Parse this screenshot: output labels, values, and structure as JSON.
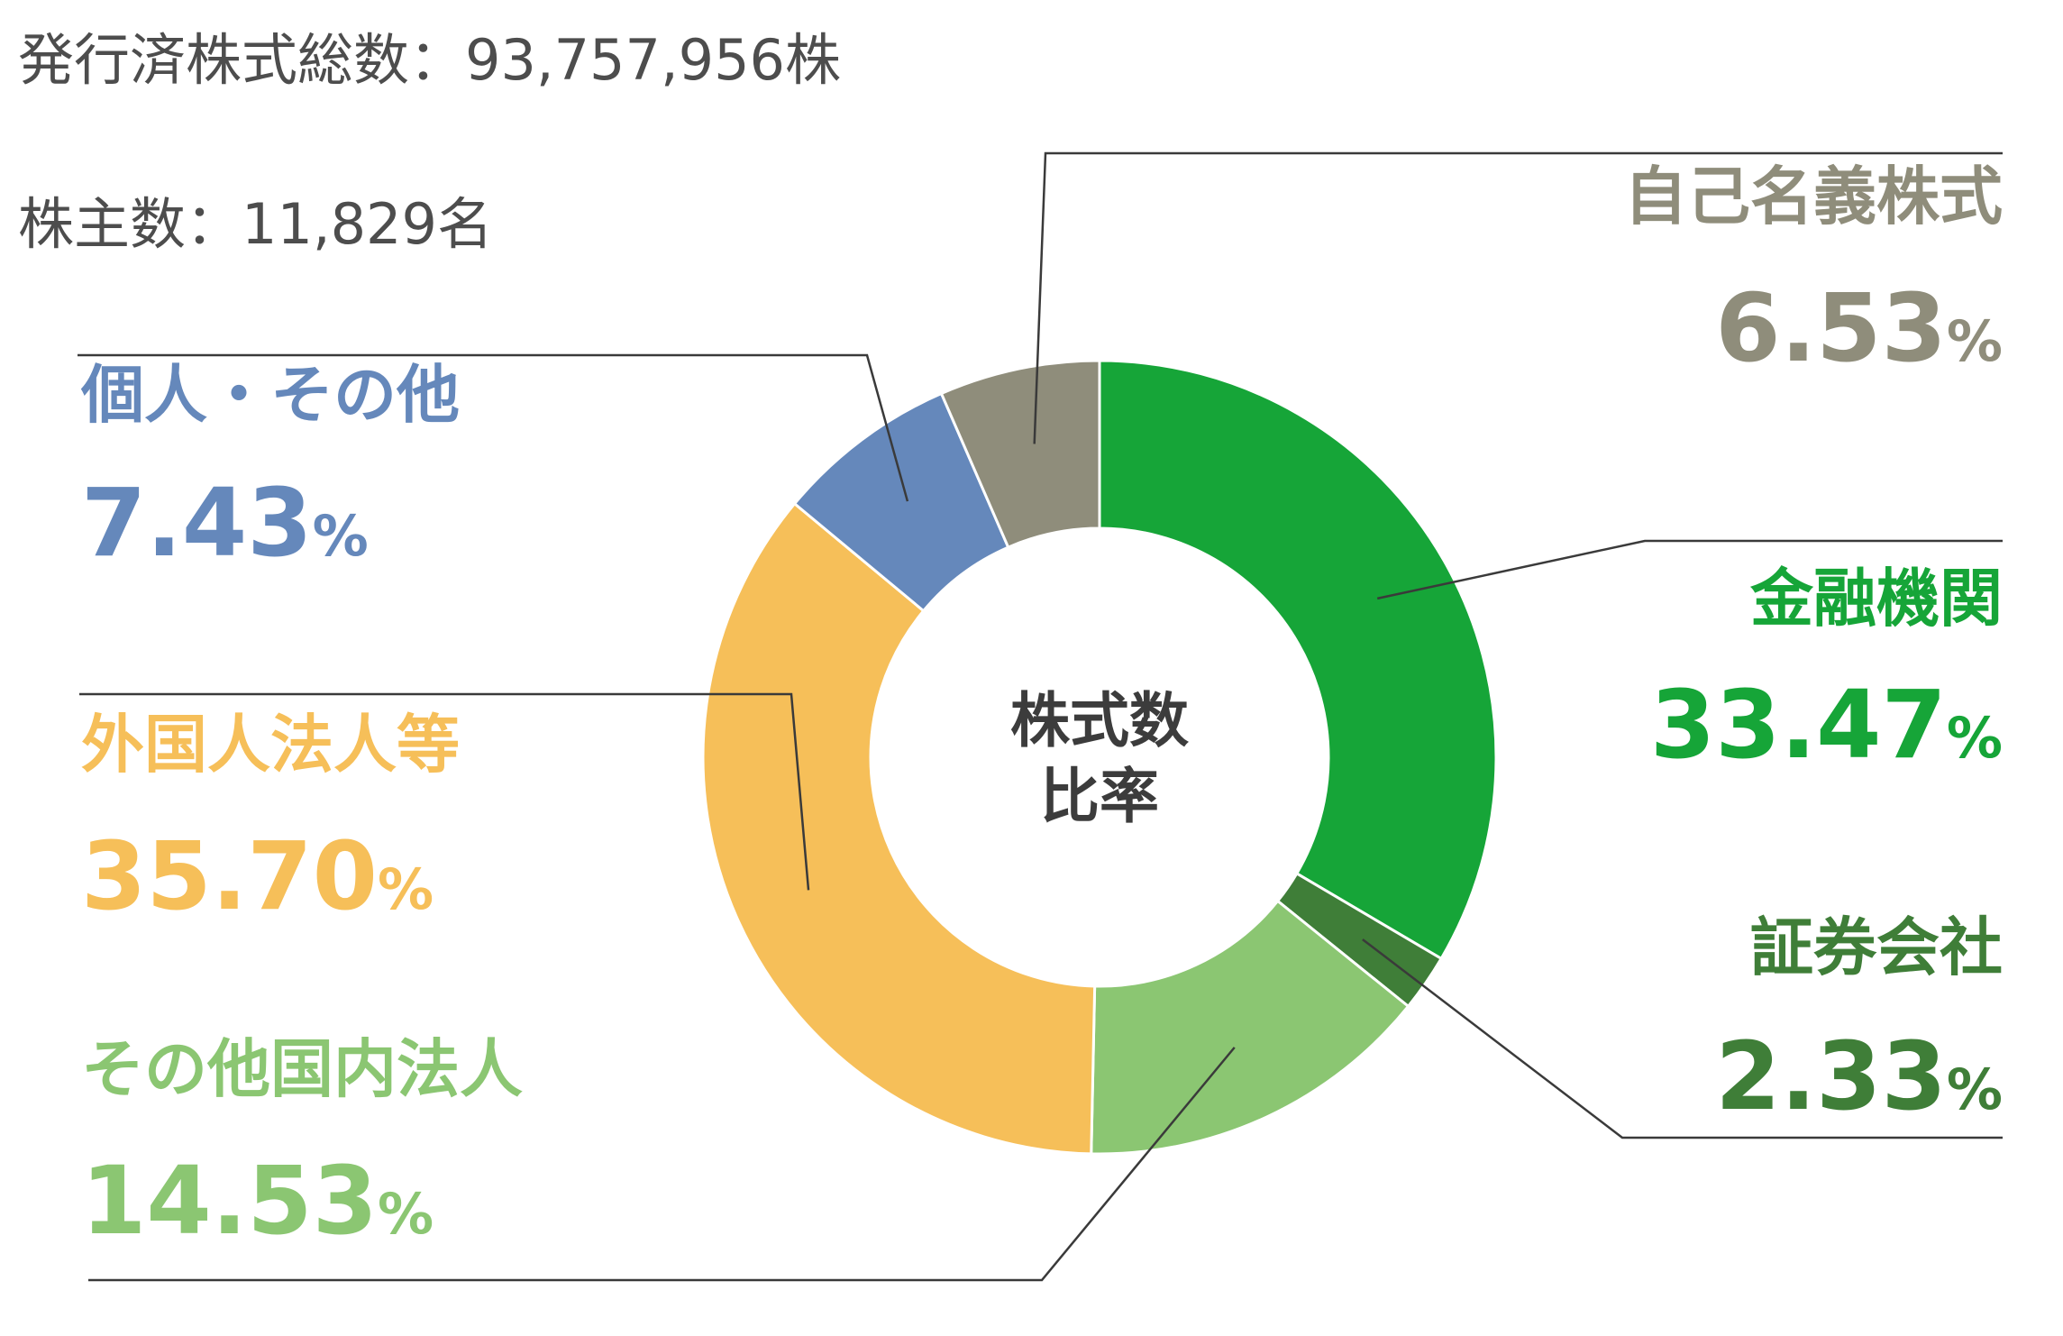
{
  "info": {
    "issued_shares": "発行済株式総数：93,757,956株",
    "shareholders": "株主数：11,829名"
  },
  "chart_data": {
    "type": "pie",
    "center_label": [
      "株式数",
      "比率"
    ],
    "unit": "%",
    "series": [
      {
        "name": "金融機関",
        "value": 33.47,
        "label": "33.47",
        "color": "#16a538"
      },
      {
        "name": "証券会社",
        "value": 2.33,
        "label": "2.33",
        "color": "#3f7e38"
      },
      {
        "name": "その他国内法人",
        "value": 14.53,
        "label": "14.53",
        "color": "#8bc672"
      },
      {
        "name": "外国人法人等",
        "value": 35.7,
        "label": "35.70",
        "color": "#f6bf59"
      },
      {
        "name": "個人・その他",
        "value": 7.43,
        "label": "7.43",
        "color": "#6588bb"
      },
      {
        "name": "自己名義株式",
        "value": 6.53,
        "label": "6.53",
        "color": "#8f8d7b"
      }
    ]
  }
}
